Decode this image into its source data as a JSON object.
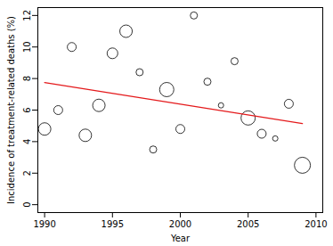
{
  "chart_data": {
    "type": "scatter",
    "x_label": "Year",
    "y_label": "Incidence of treatment-related deaths (%)",
    "x": [
      1990,
      1991,
      1992,
      1993,
      1994,
      1995,
      1996,
      1997,
      1998,
      1999,
      2000,
      2001,
      2002,
      2003,
      2004,
      2005,
      2006,
      2007,
      2008,
      2009
    ],
    "values": [
      4.8,
      6.0,
      10.0,
      4.4,
      6.3,
      9.6,
      11.0,
      8.4,
      3.5,
      7.3,
      4.8,
      12.0,
      7.8,
      6.3,
      9.1,
      5.5,
      4.5,
      4.2,
      6.4,
      2.5
    ],
    "sizes": [
      49,
      25,
      25,
      49,
      49,
      36,
      49,
      16,
      16,
      64,
      25,
      16,
      16,
      9,
      16,
      64,
      25,
      9,
      25,
      81
    ],
    "color": "#000000",
    "marker": "hollow circle",
    "fit_line": {
      "x": [
        1990,
        2009
      ],
      "values": [
        7.75,
        5.15
      ],
      "color": "#e41a1c"
    },
    "xlim": [
      1989.5,
      2010.5
    ],
    "ylim": [
      -0.5,
      12.5
    ],
    "xticks": [
      1990,
      1995,
      2000,
      2005,
      2010
    ],
    "yticks": [
      0,
      2,
      4,
      6,
      8,
      10,
      12
    ],
    "grid": false
  }
}
